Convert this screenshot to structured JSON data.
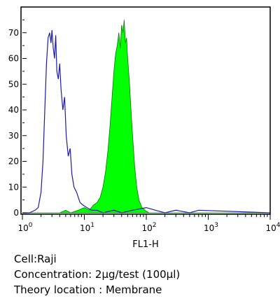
{
  "chart_data": {
    "type": "area",
    "title": "",
    "xlabel": "FL1-H",
    "ylabel": "",
    "xscale": "log",
    "xlim": [
      1,
      10000
    ],
    "ylim": [
      0,
      80
    ],
    "grid": false,
    "legend": "none",
    "x_ticks": [
      {
        "base": "10",
        "exp": "0",
        "value": 1
      },
      {
        "base": "10",
        "exp": "1",
        "value": 10
      },
      {
        "base": "10",
        "exp": "2",
        "value": 100
      },
      {
        "base": "10",
        "exp": "3",
        "value": 1000
      },
      {
        "base": "10",
        "exp": "4",
        "value": 10000
      }
    ],
    "y_ticks": [
      "0",
      "10",
      "20",
      "30",
      "40",
      "50",
      "60",
      "70"
    ],
    "series": [
      {
        "style": "outline",
        "color": "#1c1ca8",
        "points": [
          [
            1.0,
            0
          ],
          [
            1.3,
            0
          ],
          [
            1.6,
            1
          ],
          [
            1.8,
            2
          ],
          [
            2.0,
            8
          ],
          [
            2.15,
            20
          ],
          [
            2.3,
            40
          ],
          [
            2.45,
            58
          ],
          [
            2.6,
            68
          ],
          [
            2.75,
            70
          ],
          [
            2.9,
            66
          ],
          [
            3.0,
            71
          ],
          [
            3.15,
            64
          ],
          [
            3.3,
            60
          ],
          [
            3.45,
            69
          ],
          [
            3.6,
            55
          ],
          [
            3.8,
            52
          ],
          [
            4.0,
            58
          ],
          [
            4.2,
            48
          ],
          [
            4.5,
            40
          ],
          [
            4.8,
            45
          ],
          [
            5.1,
            30
          ],
          [
            5.5,
            22
          ],
          [
            5.9,
            25
          ],
          [
            6.3,
            15
          ],
          [
            6.8,
            10
          ],
          [
            7.5,
            8
          ],
          [
            8.5,
            4
          ],
          [
            9.5,
            3
          ],
          [
            11,
            2
          ],
          [
            13,
            1
          ],
          [
            16,
            1
          ],
          [
            20,
            0
          ],
          [
            30,
            1
          ],
          [
            40,
            0
          ],
          [
            60,
            1
          ],
          [
            100,
            2
          ],
          [
            140,
            1
          ],
          [
            200,
            0
          ],
          [
            300,
            1
          ],
          [
            500,
            0
          ],
          [
            700,
            1
          ],
          [
            10000,
            0
          ]
        ]
      },
      {
        "style": "filled",
        "color": "#00ff00",
        "points": [
          [
            1.0,
            0
          ],
          [
            4.0,
            0
          ],
          [
            5.0,
            1
          ],
          [
            6.0,
            0
          ],
          [
            8.0,
            1
          ],
          [
            10,
            2
          ],
          [
            12,
            1
          ],
          [
            14,
            3
          ],
          [
            16,
            4
          ],
          [
            18,
            6
          ],
          [
            20,
            10
          ],
          [
            22,
            16
          ],
          [
            24,
            24
          ],
          [
            26,
            34
          ],
          [
            28,
            45
          ],
          [
            30,
            55
          ],
          [
            32,
            62
          ],
          [
            34,
            65
          ],
          [
            36,
            70
          ],
          [
            38,
            64
          ],
          [
            40,
            73
          ],
          [
            42,
            70
          ],
          [
            44,
            75
          ],
          [
            46,
            66
          ],
          [
            48,
            68
          ],
          [
            50,
            60
          ],
          [
            53,
            52
          ],
          [
            56,
            42
          ],
          [
            60,
            30
          ],
          [
            65,
            18
          ],
          [
            70,
            10
          ],
          [
            76,
            5
          ],
          [
            85,
            2
          ],
          [
            95,
            1
          ],
          [
            110,
            0
          ],
          [
            10000,
            0
          ]
        ]
      }
    ]
  },
  "captions": {
    "cell": "Cell:Raji",
    "concentration": "Concentration: 2µg/test (100µl)",
    "location": "Theory location :  Membrane"
  }
}
